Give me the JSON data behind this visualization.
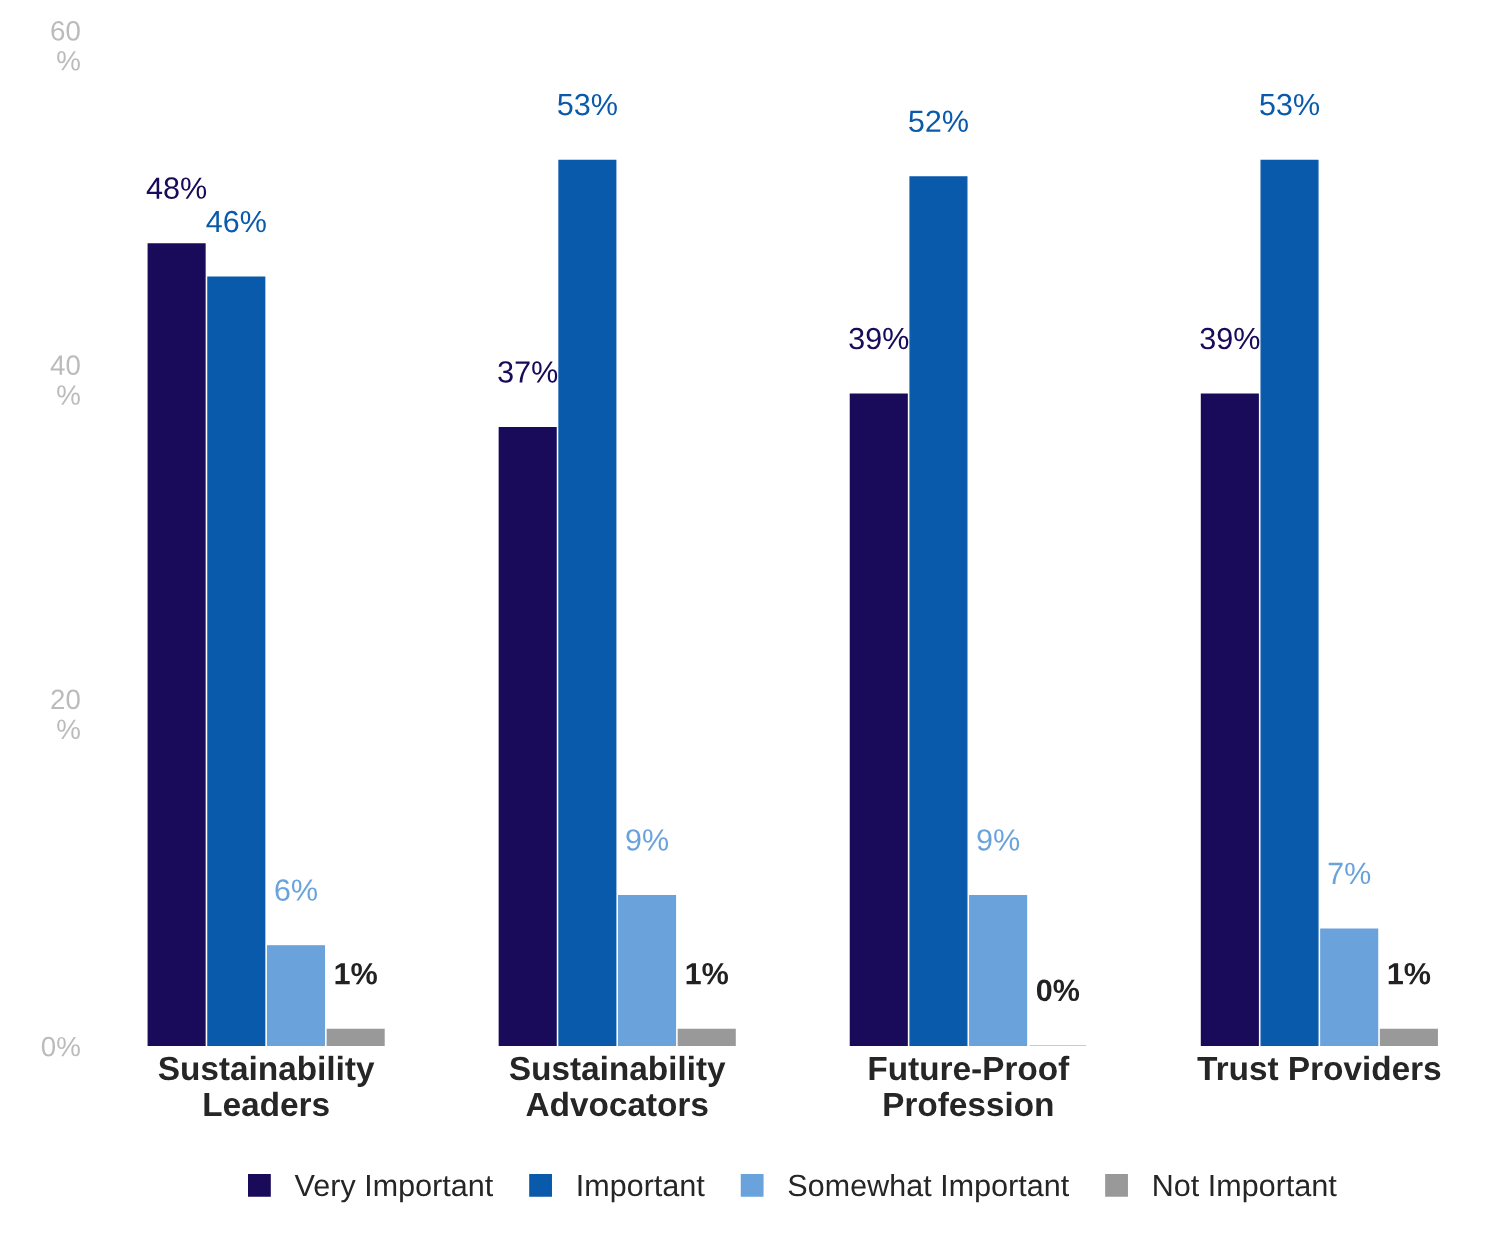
{
  "chart_data": {
    "type": "bar",
    "categories": [
      "Sustainability\nLeaders",
      "Sustainability\nAdvocators",
      "Future-Proof\nProfession",
      "Trust Providers"
    ],
    "series": [
      {
        "name": "Very Important",
        "color": "#1a0b5a",
        "values": [
          48,
          37,
          39,
          39
        ],
        "value_labels": [
          "48%",
          "37%",
          "39%",
          "39%"
        ]
      },
      {
        "name": "Important",
        "color": "#0a5aab",
        "values": [
          46,
          53,
          52,
          53
        ],
        "value_labels": [
          "46%",
          "53%",
          "52%",
          "53%"
        ]
      },
      {
        "name": "Somewhat Important",
        "color": "#6aa2dc",
        "values": [
          6,
          9,
          9,
          7
        ],
        "value_labels": [
          "6%",
          "9%",
          "9%",
          "7%"
        ]
      },
      {
        "name": "Not Important",
        "color": "#999999",
        "values": [
          1,
          1,
          0,
          1
        ],
        "value_labels": [
          "1%",
          "1%",
          "0%",
          "1%"
        ]
      }
    ],
    "ylim": [
      0,
      60
    ],
    "yticks": [
      {
        "value": 0,
        "label": "0%"
      },
      {
        "value": 20,
        "label": "20\n%"
      },
      {
        "value": 40,
        "label": "40\n%"
      },
      {
        "value": 60,
        "label": "60\n%"
      }
    ],
    "legend": "bottom",
    "grid": false
  }
}
